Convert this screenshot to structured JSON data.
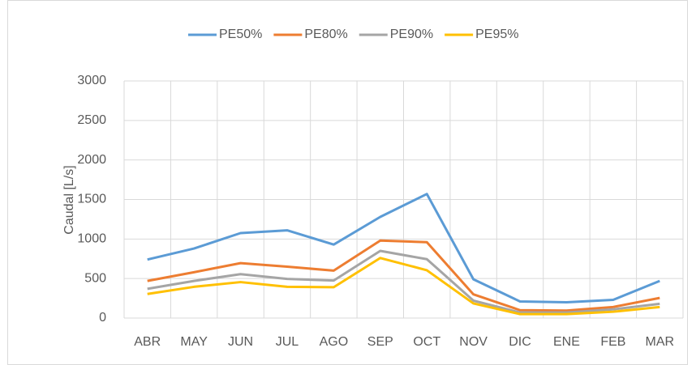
{
  "chart_data": {
    "type": "line",
    "y_label": "Caudal [L/s]",
    "categories": [
      "ABR",
      "MAY",
      "JUN",
      "JUL",
      "AGO",
      "SEP",
      "OCT",
      "NOV",
      "DIC",
      "ENE",
      "FEB",
      "MAR"
    ],
    "series": [
      {
        "name": "PE50%",
        "color": "#5b9bd5",
        "values": [
          740,
          880,
          1075,
          1110,
          930,
          1280,
          1570,
          490,
          210,
          200,
          230,
          470
        ]
      },
      {
        "name": "PE80%",
        "color": "#ed7d31",
        "values": [
          470,
          580,
          695,
          650,
          600,
          980,
          960,
          300,
          100,
          95,
          140,
          255
        ]
      },
      {
        "name": "PE90%",
        "color": "#a5a5a5",
        "values": [
          370,
          470,
          555,
          495,
          475,
          850,
          745,
          220,
          70,
          70,
          110,
          180
        ]
      },
      {
        "name": "PE95%",
        "color": "#ffc000",
        "values": [
          305,
          395,
          455,
          395,
          390,
          760,
          605,
          185,
          50,
          50,
          80,
          140
        ]
      }
    ],
    "ylim": [
      0,
      3000
    ],
    "yticks": [
      0,
      500,
      1000,
      1500,
      2000,
      2500,
      3000
    ],
    "grid": true,
    "legend": "top"
  }
}
